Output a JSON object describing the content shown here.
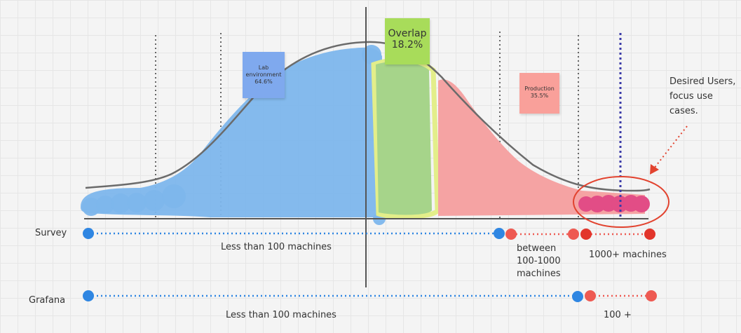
{
  "stickies": {
    "lab": {
      "line1": "Lab",
      "line2": "environment",
      "line3": "64.6%",
      "color": "#7fa9ee"
    },
    "overlap": {
      "line1": "Overlap",
      "line2": "18.2%",
      "color": "#a8dc5a"
    },
    "production": {
      "line1": "Production",
      "line2": "35.5%",
      "color": "#f9a09a"
    }
  },
  "annotation": {
    "line1": "Desired Users,",
    "line2": "focus use",
    "line3": "cases."
  },
  "rows": {
    "survey": {
      "label": "Survey",
      "seg1": "Less than 100 machines",
      "seg2_line1": "between",
      "seg2_line2": "100-1000",
      "seg2_line3": "machines",
      "seg3": "1000+ machines"
    },
    "grafana": {
      "label": "Grafana",
      "seg1": "Less than 100 machines",
      "seg2": "100 +"
    }
  },
  "colors": {
    "lab": "#7db6ec",
    "overlap": "#a6d48a",
    "overlap_outline": "#e3ee8a",
    "production": "#f5a3a3",
    "desired": "#e24d86",
    "curve": "#6b6b6b",
    "marker_blue": "#2f86e2",
    "marker_red": "#ee5a52",
    "marker_dark_red": "#e2352b",
    "annotation_red": "#e2432f",
    "desired_line": "#3a3aa8"
  }
}
